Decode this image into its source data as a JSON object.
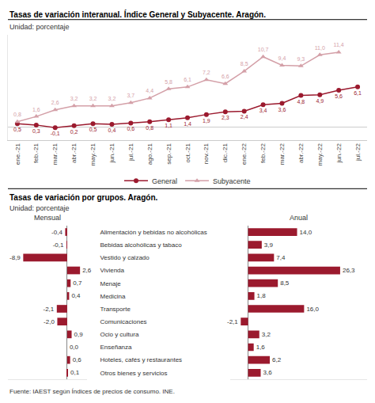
{
  "chart_data": [
    {
      "type": "line",
      "title": "Tasas de variación interanual. Índice General y Subyacente. Aragón.",
      "subtitle": "Unidad: porcentaje",
      "categories": [
        "ene.-21",
        "feb.-21",
        "mar.-21",
        "abr.-21",
        "may.-21",
        "jun.-21",
        "jul.-21",
        "ago.-21",
        "sep.-21",
        "oct.-21",
        "nov.-21",
        "dic.-21",
        "ene.-22",
        "feb.-22",
        "mar.-22",
        "abr.-22",
        "may.-22",
        "jun.-22",
        "jul.-22"
      ],
      "series": [
        {
          "name": "General",
          "color": "#9b1a2e",
          "marker": "circle",
          "values": [
            0.5,
            0.3,
            -0.1,
            0.2,
            0.5,
            0.4,
            0.6,
            0.8,
            1.1,
            1.4,
            1.9,
            2.3,
            2.4,
            3.4,
            3.6,
            4.8,
            4.9,
            5.6,
            6.1
          ],
          "value_labels": [
            "0,5",
            "0,3",
            "-0,1",
            "0,2",
            "0,5",
            "0,4",
            "0,6",
            "0,8",
            "1,1",
            "1,4",
            "1,9",
            "2,3",
            "2,4",
            "3,4",
            "3,6",
            "4,8",
            "4,9",
            "5,6",
            "6,1"
          ]
        },
        {
          "name": "Subyacente",
          "color": "#d4a0a8",
          "marker": "triangle",
          "values": [
            0.8,
            1.6,
            2.6,
            3.2,
            3.2,
            3.2,
            3.7,
            4.4,
            5.8,
            6.1,
            7.2,
            6.6,
            8.5,
            10.7,
            9.4,
            9.3,
            11.0,
            11.4,
            null
          ],
          "value_labels": [
            "0,8",
            "1,6",
            "2,6",
            "3,2",
            "3,2",
            "3,2",
            "3,7",
            "4,4",
            "5,8",
            "6,1",
            "7,2",
            "6,6",
            "8,5",
            "10,7",
            "9,4",
            "9,3",
            "11,0",
            "11,4",
            null
          ]
        }
      ],
      "ylim": [
        -2.0,
        14.0
      ],
      "grid": false,
      "legend": "bottom",
      "data_labels": true,
      "tick_labels": "x"
    },
    {
      "type": "bar",
      "title": "Mensual",
      "orientation": "horizontal",
      "categories": [
        "Alimentación y bebidas no alcohólicas",
        "Bebidas alcohólicas y tabaco",
        "Vestido y calzado",
        "Vivienda",
        "Menaje",
        "Medicina",
        "Transporte",
        "Comunicaciones",
        "Ocio y cultura",
        "Enseñanza",
        "Hoteles, cafés y restaurantes",
        "Otros bienes y servicios"
      ],
      "values": [
        -0.4,
        -0.1,
        -8.9,
        2.6,
        0.7,
        0.4,
        -2.1,
        -2.0,
        0.9,
        0.0,
        0.6,
        0.1
      ],
      "value_labels": [
        "-0,4",
        "-0,1",
        "-8,9",
        "2,6",
        "0,7",
        "0,4",
        "-2,1",
        "-2,0",
        "0,9",
        "0,0",
        "0,6",
        "0,1"
      ],
      "color": "#9b1a2e",
      "xlim": [
        -12,
        4
      ],
      "grid": false,
      "data_labels": true,
      "tick_labels": "y",
      "annotations": [
        "Tasas de variación por grupos. Aragón.",
        "Unidad: porcentaje"
      ]
    },
    {
      "type": "bar",
      "title": "Anual",
      "orientation": "horizontal",
      "categories": [
        "Alimentación y bebidas no alcohólicas",
        "Bebidas alcohólicas y tabaco",
        "Vestido y calzado",
        "Vivienda",
        "Menaje",
        "Medicina",
        "Transporte",
        "Comunicaciones",
        "Ocio y cultura",
        "Enseñanza",
        "Hoteles, cafés y restaurantes",
        "Otros bienes y servicios"
      ],
      "values": [
        14.0,
        3.9,
        7.4,
        26.3,
        8.5,
        1.8,
        16.0,
        -2.1,
        3.2,
        1.6,
        6.2,
        3.6
      ],
      "value_labels": [
        "14,0",
        "3,9",
        "7,4",
        "26,3",
        "8,5",
        "1,8",
        "16,0",
        "-2,1",
        "3,2",
        "1,6",
        "6,2",
        "3,6"
      ],
      "color": "#9b1a2e",
      "xlim": [
        -5,
        34
      ],
      "grid": false,
      "data_labels": true,
      "tick_labels": false,
      "annotations": [
        "Fuente: IAEST según Índices de precios de consumo. INE."
      ]
    }
  ]
}
